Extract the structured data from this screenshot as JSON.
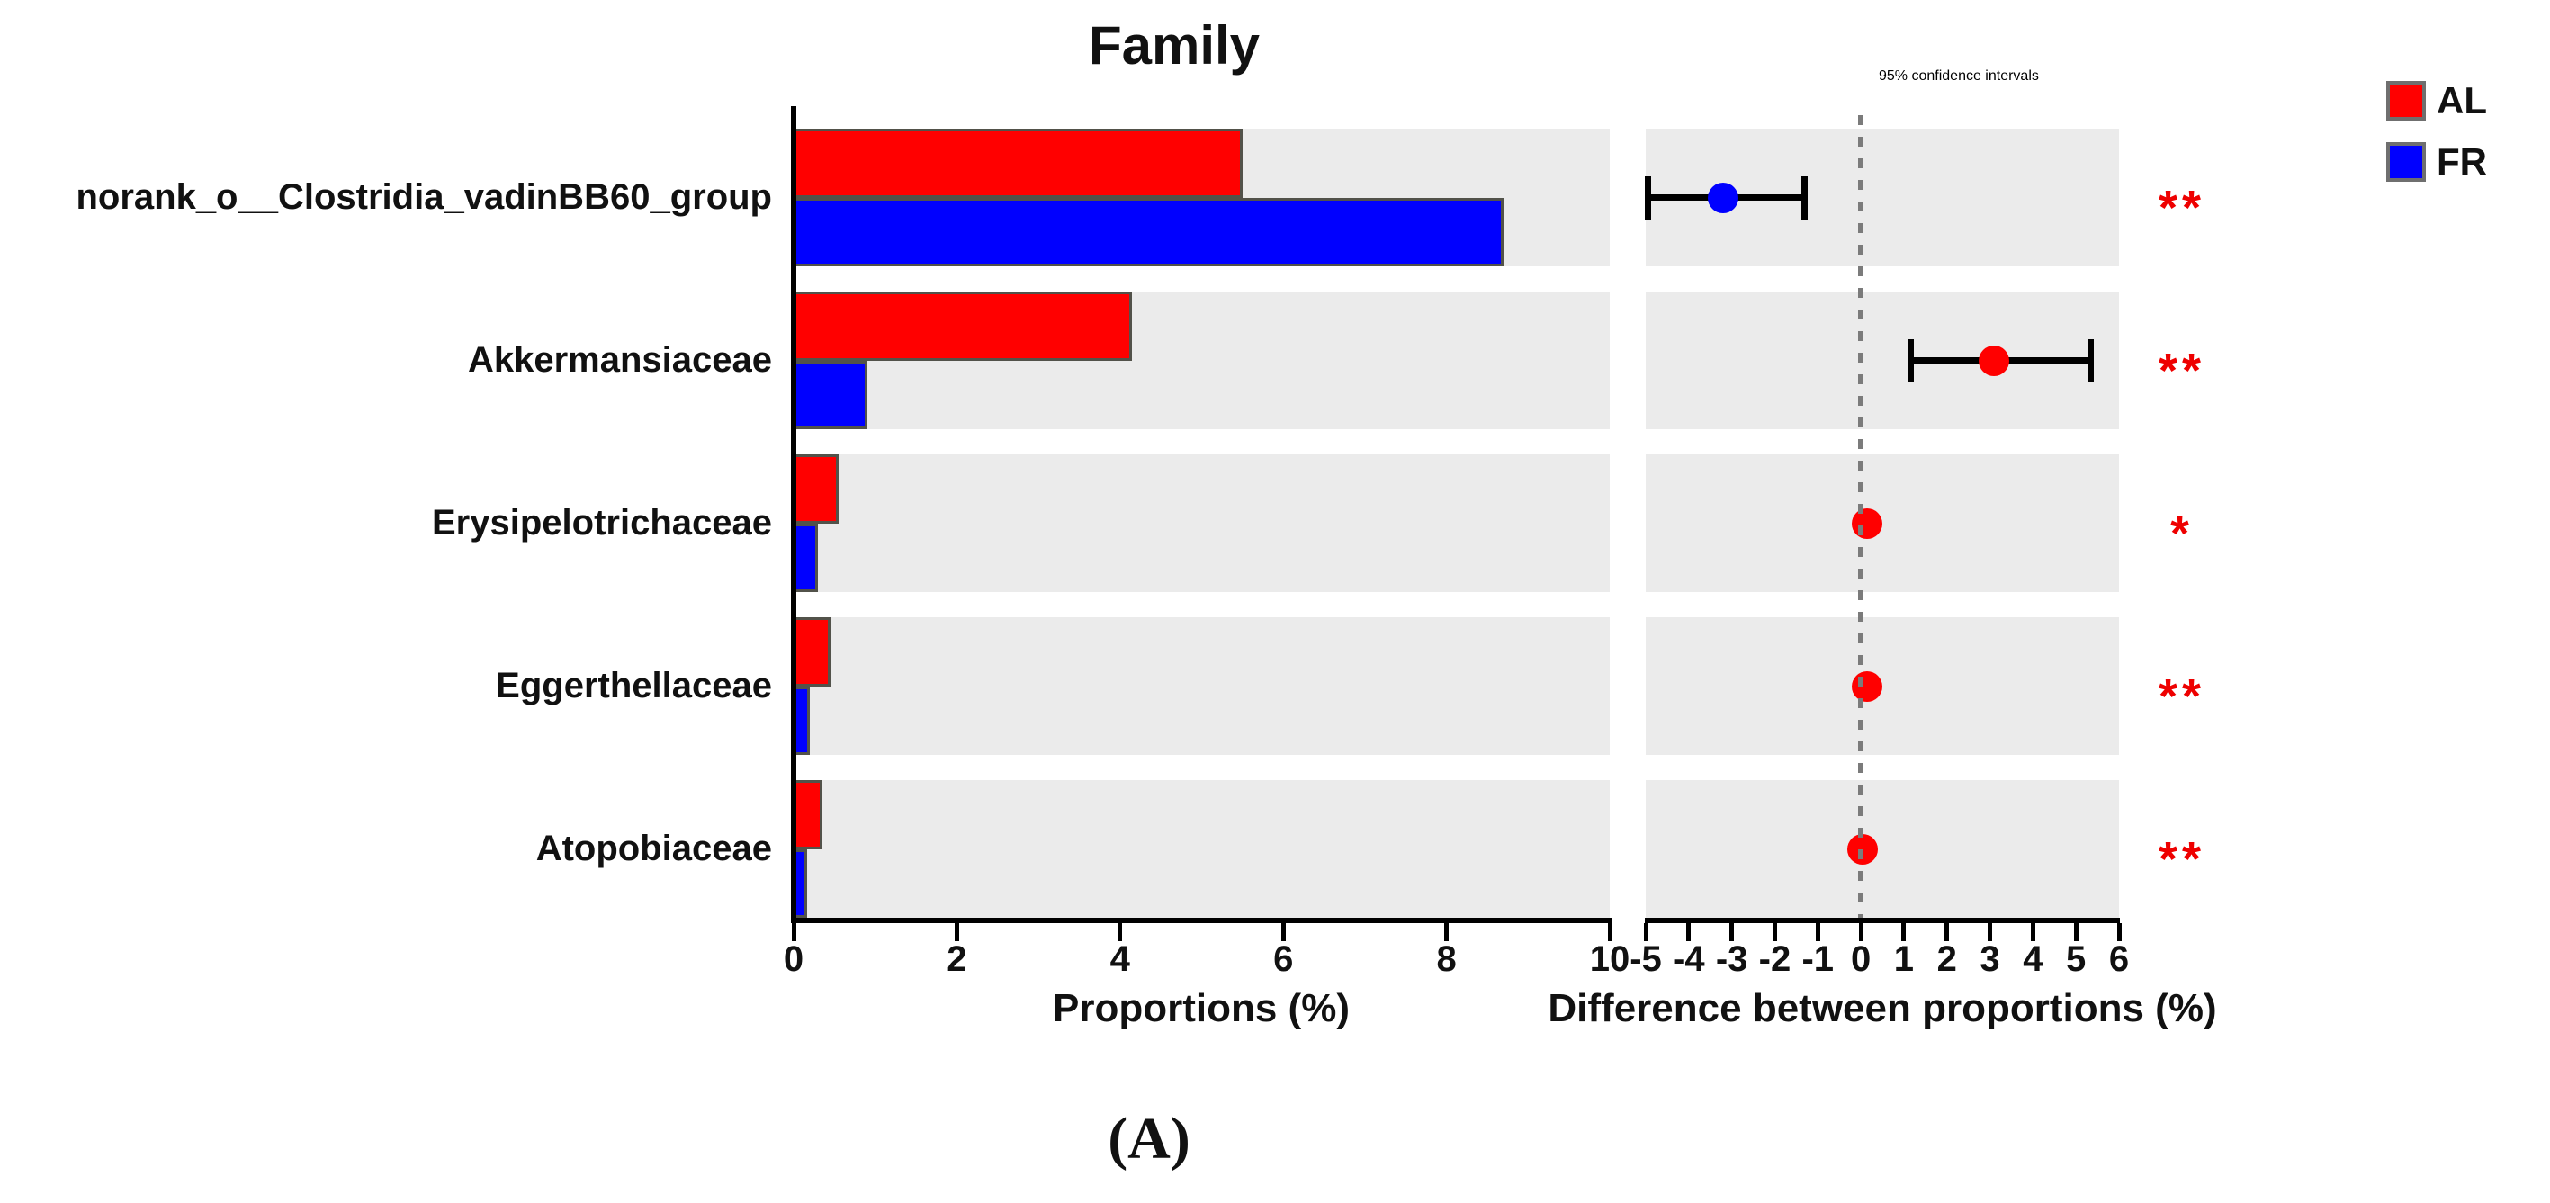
{
  "figure": {
    "title": "Family",
    "ci_title": "95% confidence intervals",
    "caption": "(A)",
    "left_axis": {
      "label": "Proportions (%)",
      "min": 0,
      "max": 10,
      "ticks": [
        0,
        2,
        4,
        6,
        8,
        10
      ]
    },
    "right_axis": {
      "label": "Difference between proportions (%)",
      "min": -5,
      "max": 6,
      "ticks": [
        -5,
        -4,
        -3,
        -2,
        -1,
        0,
        1,
        2,
        3,
        4,
        5,
        6
      ],
      "zero_line_at": 0
    },
    "legend": [
      {
        "label": "AL",
        "color": "#ff0000"
      },
      {
        "label": "FR",
        "color": "#0000ff"
      }
    ],
    "colors": {
      "al": "#ff0000",
      "fr": "#0000ff",
      "band_background": "#ebebeb",
      "bar_border": "#52524a",
      "zero_dash_line": "#7b7b7b",
      "error_bar": "#000000",
      "significance": "#ee0000",
      "text": "#111111"
    }
  },
  "chart_data": {
    "type": "bar",
    "title": "Family",
    "xlabel_left": "Proportions (%)",
    "xlabel_right": "Difference between proportions (%)",
    "categories": [
      "norank_o__Clostridia_vadinBB60_group",
      "Akkermansiaceae",
      "Erysipelotrichaceae",
      "Eggerthellaceae",
      "Atopobiaceae"
    ],
    "series": [
      {
        "name": "AL",
        "color": "#ff0000",
        "values": [
          5.5,
          4.15,
          0.55,
          0.45,
          0.35
        ]
      },
      {
        "name": "FR",
        "color": "#0000ff",
        "values": [
          8.7,
          0.9,
          0.3,
          0.2,
          0.17
        ]
      }
    ],
    "proportions_axis_range": [
      0,
      10
    ],
    "difference_axis_range": [
      -5,
      6
    ],
    "differences": [
      {
        "value": -3.2,
        "ci_low": -4.95,
        "ci_high": -1.3,
        "dot_color": "#0000ff"
      },
      {
        "value": 3.1,
        "ci_low": 1.15,
        "ci_high": 5.35,
        "dot_color": "#ff0000"
      },
      {
        "value": 0.15,
        "ci_low": 0.15,
        "ci_high": 0.15,
        "dot_color": "#ff0000"
      },
      {
        "value": 0.15,
        "ci_low": 0.15,
        "ci_high": 0.15,
        "dot_color": "#ff0000"
      },
      {
        "value": 0.05,
        "ci_low": 0.05,
        "ci_high": 0.05,
        "dot_color": "#ff0000"
      }
    ],
    "significance": [
      "**",
      "**",
      "*",
      "**",
      "**"
    ],
    "legend_position": "top-right",
    "grid": false
  }
}
